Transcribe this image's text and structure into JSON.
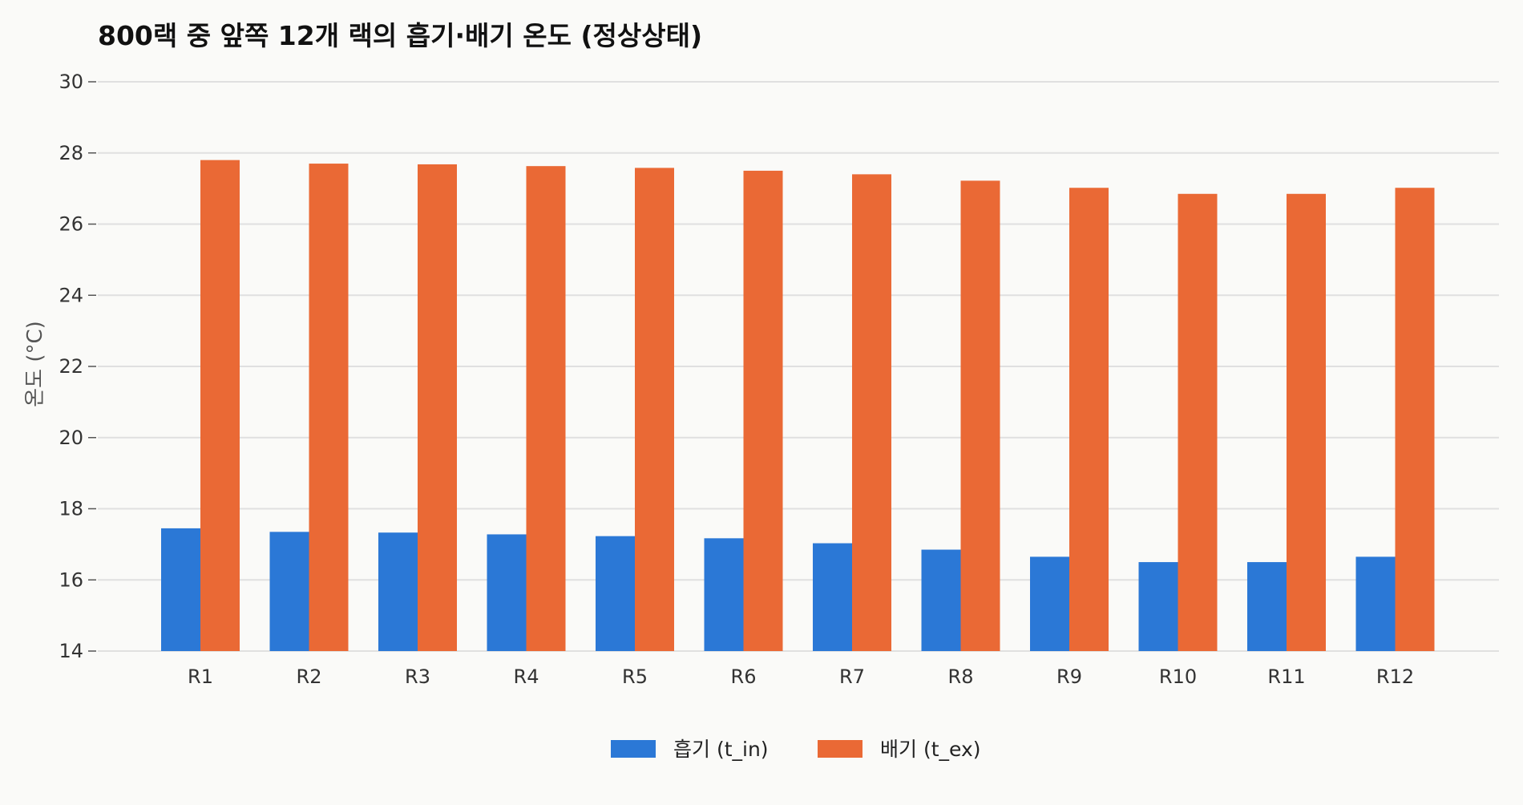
{
  "chart_data": {
    "type": "bar",
    "title": "800랙 중 앞쪽 12개 랙의 흡기·배기 온도 (정상상태)",
    "xlabel": "",
    "ylabel": "온도 (°C)",
    "ylim": [
      14,
      30
    ],
    "yticks": [
      14,
      16,
      18,
      20,
      22,
      24,
      26,
      28,
      30
    ],
    "grid": true,
    "legend_position": "bottom-center",
    "categories": [
      "R1",
      "R2",
      "R3",
      "R4",
      "R5",
      "R6",
      "R7",
      "R8",
      "R9",
      "R10",
      "R11",
      "R12"
    ],
    "series": [
      {
        "name": "흡기 (t_in)",
        "color": "#2b78d6",
        "values": [
          17.45,
          17.35,
          17.33,
          17.28,
          17.23,
          17.17,
          17.03,
          16.85,
          16.65,
          16.5,
          16.5,
          16.65
        ]
      },
      {
        "name": "배기 (t_ex)",
        "color": "#ea6935",
        "values": [
          27.8,
          27.7,
          27.68,
          27.63,
          27.58,
          27.5,
          27.4,
          27.22,
          27.02,
          26.85,
          26.85,
          27.02
        ]
      }
    ]
  }
}
